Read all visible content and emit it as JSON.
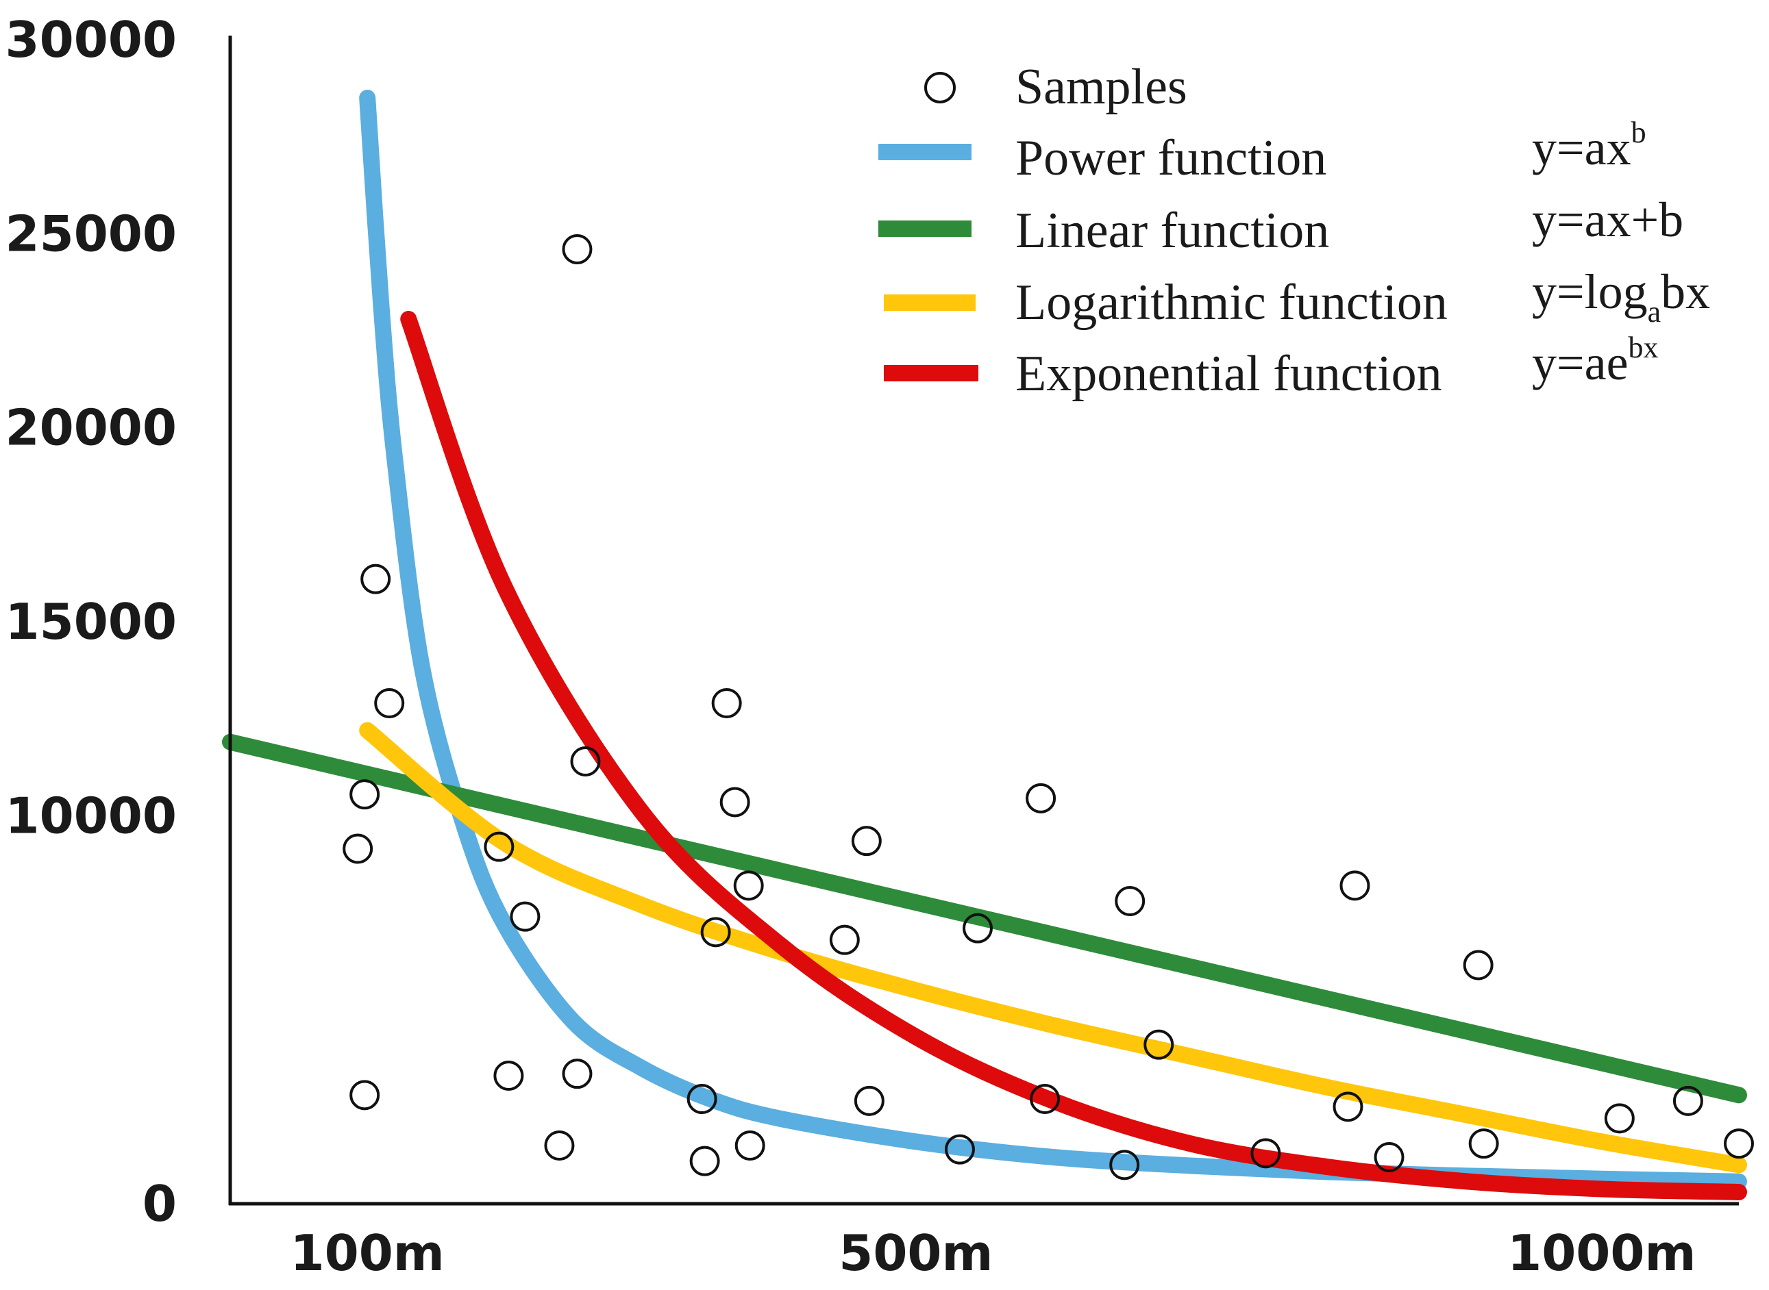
{
  "chart_data": {
    "type": "scatter",
    "title": "",
    "xlabel": "",
    "ylabel": "",
    "xlim": [
      0,
      1100
    ],
    "ylim": [
      0,
      30000
    ],
    "x_ticks": [
      {
        "value": 100,
        "label": "100m"
      },
      {
        "value": 500,
        "label": "500m"
      },
      {
        "value": 1000,
        "label": "1000m"
      }
    ],
    "y_ticks": [
      {
        "value": 0,
        "label": "0"
      },
      {
        "value": 10000,
        "label": "10000"
      },
      {
        "value": 15000,
        "label": "15000"
      },
      {
        "value": 20000,
        "label": "20000"
      },
      {
        "value": 25000,
        "label": "25000"
      },
      {
        "value": 30000,
        "label": "30000"
      }
    ],
    "grid": false,
    "legend_position": "top-right",
    "samples": {
      "name": "Samples",
      "points": [
        [
          93,
          9150
        ],
        [
          98,
          10550
        ],
        [
          98,
          2800
        ],
        [
          106,
          16100
        ],
        [
          116,
          12900
        ],
        [
          196,
          9200
        ],
        [
          203,
          3300
        ],
        [
          215,
          7400
        ],
        [
          240,
          1500
        ],
        [
          253,
          24600
        ],
        [
          253,
          3350
        ],
        [
          259,
          11400
        ],
        [
          344,
          2700
        ],
        [
          346,
          1100
        ],
        [
          354,
          7000
        ],
        [
          362,
          12900
        ],
        [
          368,
          10350
        ],
        [
          378,
          8200
        ],
        [
          379,
          1500
        ],
        [
          448,
          6800
        ],
        [
          464,
          9350
        ],
        [
          466,
          2650
        ],
        [
          532,
          1400
        ],
        [
          545,
          7100
        ],
        [
          591,
          10450
        ],
        [
          594,
          2700
        ],
        [
          652,
          1000
        ],
        [
          656,
          7800
        ],
        [
          677,
          4100
        ],
        [
          755,
          1300
        ],
        [
          815,
          2500
        ],
        [
          820,
          8200
        ],
        [
          845,
          1200
        ],
        [
          910,
          6150
        ],
        [
          914,
          1550
        ],
        [
          1013,
          2200
        ],
        [
          1063,
          2650
        ],
        [
          1100,
          1550
        ]
      ]
    },
    "series": [
      {
        "name": "Power function",
        "equation": "y=ax^b",
        "color": "#5aaee0",
        "x": [
          100,
          110,
          120,
          140,
          170,
          200,
          250,
          300,
          350,
          400,
          500,
          600,
          700,
          800,
          900,
          1000,
          1100
        ],
        "y": [
          28500,
          23200,
          19200,
          13800,
          9800,
          7200,
          4700,
          3500,
          2700,
          2200,
          1600,
          1200,
          980,
          820,
          720,
          640,
          570
        ]
      },
      {
        "name": "Linear function",
        "equation": "y=ax+b",
        "color": "#2e8b3a",
        "x": [
          0,
          1100
        ],
        "y": [
          11900,
          2800
        ]
      },
      {
        "name": "Logarithmic function",
        "equation": "y=log_a bx",
        "color": "#ffc60b",
        "x": [
          100,
          200,
          300,
          400,
          500,
          600,
          700,
          800,
          900,
          1000,
          1100
        ],
        "y": [
          12200,
          9300,
          7700,
          6500,
          5500,
          4600,
          3800,
          3000,
          2300,
          1600,
          1000
        ]
      },
      {
        "name": "Exponential function",
        "equation": "y=ae^bx",
        "color": "#dd0b0b",
        "x": [
          130,
          200,
          300,
          400,
          500,
          600,
          700,
          800,
          900,
          1000,
          1100
        ],
        "y": [
          22800,
          15900,
          10100,
          6700,
          4300,
          2650,
          1550,
          950,
          580,
          380,
          300
        ]
      }
    ]
  }
}
